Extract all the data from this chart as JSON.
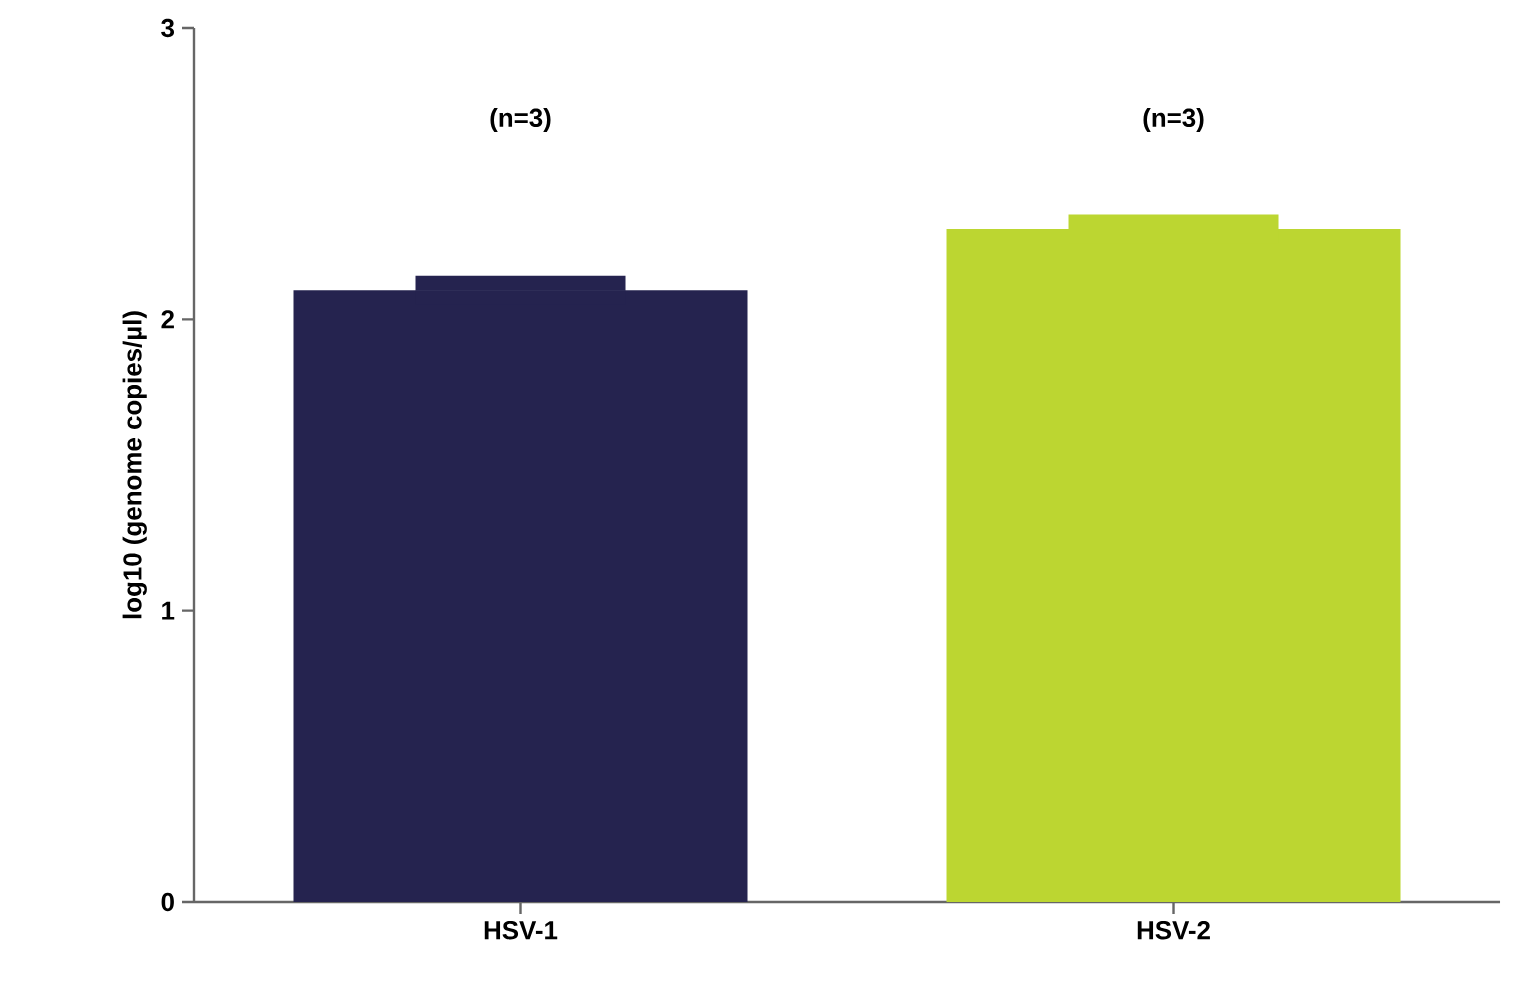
{
  "chart_data": {
    "type": "bar",
    "ylabel": "log10 (genome copies/µl)",
    "categories": [
      "HSV-1",
      "HSV-2"
    ],
    "values": [
      2.1,
      2.31
    ],
    "colors": [
      "#25234f",
      "#bcd631"
    ],
    "errors": [
      0.05,
      0.05
    ],
    "ylim": [
      0,
      3
    ],
    "yticks": [
      0,
      1,
      2,
      3
    ],
    "grid": false,
    "annotations": [
      "(n=3)",
      "(n=3)"
    ]
  }
}
